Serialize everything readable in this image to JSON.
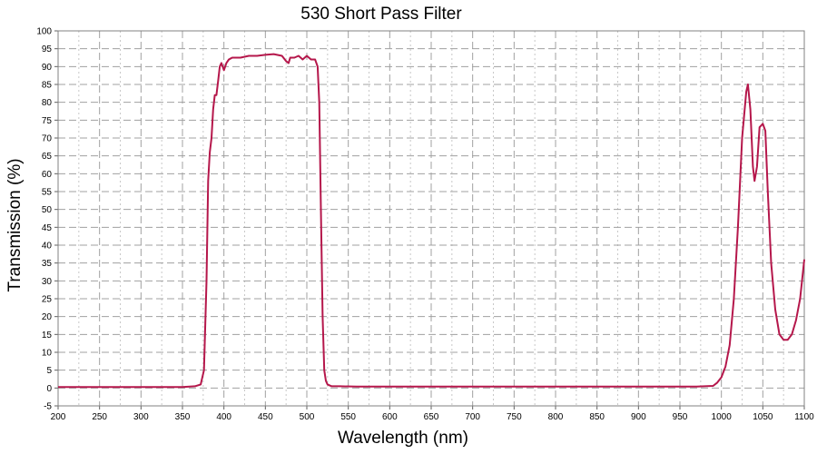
{
  "chart_data": {
    "type": "line",
    "title": "530 Short Pass Filter",
    "xlabel": "Wavelength (nm)",
    "ylabel": "Transmission (%)",
    "xlim": [
      200,
      1100
    ],
    "ylim": [
      -5,
      100
    ],
    "xticks": [
      200,
      250,
      300,
      350,
      400,
      450,
      500,
      550,
      600,
      650,
      700,
      750,
      800,
      850,
      900,
      950,
      1000,
      1050,
      1100
    ],
    "yticks": [
      -5,
      0,
      5,
      10,
      15,
      20,
      25,
      30,
      35,
      40,
      45,
      50,
      55,
      60,
      65,
      70,
      75,
      80,
      85,
      90,
      95,
      100
    ],
    "grid": true,
    "line_color": "#b5174b",
    "series": [
      {
        "x": [
          200,
          250,
          300,
          350,
          365,
          372,
          376,
          379,
          381,
          383,
          385,
          387,
          389,
          391,
          393,
          395,
          397,
          400,
          403,
          406,
          410,
          415,
          420,
          430,
          440,
          450,
          460,
          470,
          475,
          478,
          480,
          485,
          490,
          495,
          500,
          505,
          510,
          513,
          515,
          517,
          519,
          521,
          523,
          525,
          530,
          540,
          560,
          600,
          700,
          800,
          900,
          970,
          990,
          995,
          1000,
          1005,
          1010,
          1015,
          1020,
          1025,
          1030,
          1032,
          1035,
          1038,
          1040,
          1043,
          1046,
          1050,
          1053,
          1056,
          1060,
          1065,
          1070,
          1075,
          1080,
          1085,
          1090,
          1095,
          1100
        ],
        "y": [
          0.3,
          0.3,
          0.3,
          0.3,
          0.5,
          1,
          5,
          30,
          58,
          66,
          70,
          78,
          82,
          82,
          86,
          90,
          91,
          89,
          91,
          92,
          92.5,
          92.5,
          92.5,
          93,
          93,
          93.3,
          93.5,
          93,
          91.5,
          91,
          92.5,
          92.5,
          93,
          92,
          93,
          92,
          92,
          90,
          80,
          50,
          20,
          5,
          2,
          1,
          0.5,
          0.5,
          0.4,
          0.4,
          0.4,
          0.4,
          0.4,
          0.4,
          0.6,
          1.5,
          3,
          6,
          12,
          25,
          45,
          70,
          83,
          85,
          78,
          62,
          58,
          62,
          73,
          74,
          72,
          55,
          35,
          22,
          15,
          13.5,
          13.5,
          15,
          19,
          25,
          36
        ]
      }
    ]
  }
}
